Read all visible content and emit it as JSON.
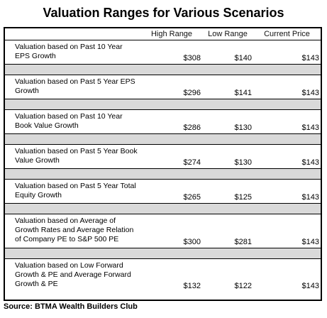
{
  "title": "Valuation Ranges for Various Scenarios",
  "columns": {
    "high": "High Range",
    "low": "Low Range",
    "current": "Current Price"
  },
  "rows": [
    {
      "label": "Valuation based on Past 10 Year EPS Growth",
      "high": "$308",
      "low": "$140",
      "current": "$143"
    },
    {
      "label": "Valuation based on Past 5 Year EPS Growth",
      "high": "$296",
      "low": "$141",
      "current": "$143"
    },
    {
      "label": "Valuation based on Past 10 Year Book Value Growth",
      "high": "$286",
      "low": "$130",
      "current": "$143"
    },
    {
      "label": "Valuation based on Past 5 Year Book Value Growth",
      "high": "$274",
      "low": "$130",
      "current": "$143"
    },
    {
      "label": "Valuation based on Past 5 Year Total Equity Growth",
      "high": "$265",
      "low": "$125",
      "current": "$143"
    },
    {
      "label": "Valuation based on Average of Growth Rates and Average Relation of Company PE to S&P 500 PE",
      "high": "$300",
      "low": "$281",
      "current": "$143"
    },
    {
      "label": "Valuation based on Low Forward Growth & PE and Average Forward Growth & PE",
      "high": "$132",
      "low": "$122",
      "current": "$143"
    }
  ],
  "source": "Source: BTMA Wealth Builders Club"
}
